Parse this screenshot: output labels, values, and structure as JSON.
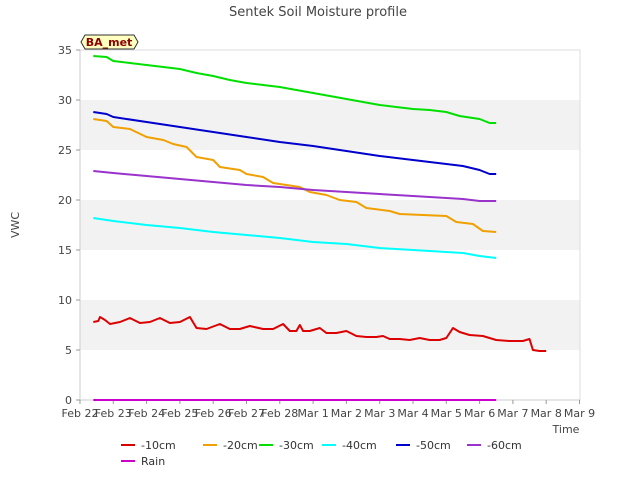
{
  "chart_data": {
    "type": "line",
    "title": "Sentek Soil Moisture profile",
    "xlabel": "Time",
    "ylabel": "VWC",
    "badge": "BA_met",
    "ylim": [
      0,
      35
    ],
    "yticks": [
      0,
      5,
      10,
      15,
      20,
      25,
      30,
      35
    ],
    "xlim": [
      0,
      16
    ],
    "xtick_labels": [
      "Feb 22",
      "Feb 23",
      "Feb 24",
      "Feb 25",
      "Feb 26",
      "Feb 27",
      "Feb 28",
      "Mar 1",
      "Mar 2",
      "Mar 3",
      "Mar 4",
      "Mar 5",
      "Mar 6",
      "Mar 7",
      "Mar 8",
      "Mar 9"
    ],
    "grid": "horizontal bands",
    "legend_position": "bottom",
    "series": [
      {
        "name": "-10cm",
        "color": "#dd0000",
        "points": [
          [
            0.4,
            7.8
          ],
          [
            0.55,
            7.9
          ],
          [
            0.6,
            8.3
          ],
          [
            0.75,
            8.0
          ],
          [
            0.9,
            7.6
          ],
          [
            1.2,
            7.8
          ],
          [
            1.5,
            8.2
          ],
          [
            1.8,
            7.7
          ],
          [
            2.1,
            7.8
          ],
          [
            2.4,
            8.2
          ],
          [
            2.7,
            7.7
          ],
          [
            3.0,
            7.8
          ],
          [
            3.3,
            8.3
          ],
          [
            3.5,
            7.2
          ],
          [
            3.8,
            7.1
          ],
          [
            4.2,
            7.6
          ],
          [
            4.5,
            7.1
          ],
          [
            4.8,
            7.1
          ],
          [
            5.1,
            7.4
          ],
          [
            5.5,
            7.1
          ],
          [
            5.8,
            7.1
          ],
          [
            6.1,
            7.6
          ],
          [
            6.3,
            6.9
          ],
          [
            6.5,
            6.9
          ],
          [
            6.6,
            7.5
          ],
          [
            6.7,
            6.9
          ],
          [
            6.9,
            6.9
          ],
          [
            7.2,
            7.2
          ],
          [
            7.4,
            6.7
          ],
          [
            7.7,
            6.7
          ],
          [
            8.0,
            6.9
          ],
          [
            8.3,
            6.4
          ],
          [
            8.6,
            6.3
          ],
          [
            8.9,
            6.3
          ],
          [
            9.1,
            6.4
          ],
          [
            9.3,
            6.1
          ],
          [
            9.6,
            6.1
          ],
          [
            9.9,
            6.0
          ],
          [
            10.2,
            6.2
          ],
          [
            10.5,
            6.0
          ],
          [
            10.8,
            6.0
          ],
          [
            11.0,
            6.2
          ],
          [
            11.2,
            7.2
          ],
          [
            11.4,
            6.8
          ],
          [
            11.7,
            6.5
          ],
          [
            12.1,
            6.4
          ],
          [
            12.5,
            6.0
          ],
          [
            12.9,
            5.9
          ],
          [
            13.3,
            5.9
          ],
          [
            13.5,
            6.1
          ],
          [
            13.6,
            5.0
          ],
          [
            13.8,
            4.9
          ],
          [
            14.0,
            4.9
          ]
        ]
      },
      {
        "name": "-20cm",
        "color": "#f0a000",
        "points": [
          [
            0.4,
            28.1
          ],
          [
            0.8,
            27.9
          ],
          [
            1.0,
            27.3
          ],
          [
            1.5,
            27.1
          ],
          [
            2.0,
            26.3
          ],
          [
            2.5,
            26.0
          ],
          [
            2.8,
            25.6
          ],
          [
            3.2,
            25.3
          ],
          [
            3.5,
            24.3
          ],
          [
            4.0,
            24.0
          ],
          [
            4.2,
            23.3
          ],
          [
            4.8,
            23.0
          ],
          [
            5.0,
            22.6
          ],
          [
            5.5,
            22.3
          ],
          [
            5.8,
            21.7
          ],
          [
            6.2,
            21.5
          ],
          [
            6.6,
            21.3
          ],
          [
            6.9,
            20.8
          ],
          [
            7.4,
            20.5
          ],
          [
            7.8,
            20.0
          ],
          [
            8.3,
            19.8
          ],
          [
            8.6,
            19.2
          ],
          [
            9.3,
            18.9
          ],
          [
            9.6,
            18.6
          ],
          [
            10.3,
            18.5
          ],
          [
            11.0,
            18.4
          ],
          [
            11.3,
            17.8
          ],
          [
            11.8,
            17.6
          ],
          [
            12.1,
            16.9
          ],
          [
            12.5,
            16.8
          ]
        ]
      },
      {
        "name": "-30cm",
        "color": "#00e000",
        "points": [
          [
            0.4,
            34.4
          ],
          [
            0.8,
            34.3
          ],
          [
            1.0,
            33.9
          ],
          [
            1.5,
            33.7
          ],
          [
            2.0,
            33.5
          ],
          [
            2.5,
            33.3
          ],
          [
            3.0,
            33.1
          ],
          [
            3.5,
            32.7
          ],
          [
            4.0,
            32.4
          ],
          [
            4.5,
            32.0
          ],
          [
            5.0,
            31.7
          ],
          [
            5.5,
            31.5
          ],
          [
            6.0,
            31.3
          ],
          [
            6.5,
            31.0
          ],
          [
            7.0,
            30.7
          ],
          [
            7.5,
            30.4
          ],
          [
            8.0,
            30.1
          ],
          [
            8.5,
            29.8
          ],
          [
            9.0,
            29.5
          ],
          [
            9.5,
            29.3
          ],
          [
            10.0,
            29.1
          ],
          [
            10.5,
            29.0
          ],
          [
            11.0,
            28.8
          ],
          [
            11.4,
            28.4
          ],
          [
            12.0,
            28.1
          ],
          [
            12.3,
            27.7
          ],
          [
            12.5,
            27.7
          ]
        ]
      },
      {
        "name": "-40cm",
        "color": "#00ffff",
        "points": [
          [
            0.4,
            18.2
          ],
          [
            1.0,
            17.9
          ],
          [
            2.0,
            17.5
          ],
          [
            3.0,
            17.2
          ],
          [
            4.0,
            16.8
          ],
          [
            5.0,
            16.5
          ],
          [
            6.0,
            16.2
          ],
          [
            7.0,
            15.8
          ],
          [
            8.0,
            15.6
          ],
          [
            9.0,
            15.2
          ],
          [
            10.0,
            15.0
          ],
          [
            11.0,
            14.8
          ],
          [
            11.5,
            14.7
          ],
          [
            12.0,
            14.4
          ],
          [
            12.5,
            14.2
          ]
        ]
      },
      {
        "name": "-50cm",
        "color": "#0000cc",
        "points": [
          [
            0.4,
            28.8
          ],
          [
            0.8,
            28.6
          ],
          [
            1.0,
            28.3
          ],
          [
            2.0,
            27.8
          ],
          [
            3.0,
            27.3
          ],
          [
            4.0,
            26.8
          ],
          [
            5.0,
            26.3
          ],
          [
            6.0,
            25.8
          ],
          [
            7.0,
            25.4
          ],
          [
            8.0,
            24.9
          ],
          [
            9.0,
            24.4
          ],
          [
            10.0,
            24.0
          ],
          [
            11.0,
            23.6
          ],
          [
            11.5,
            23.4
          ],
          [
            12.0,
            23.0
          ],
          [
            12.3,
            22.6
          ],
          [
            12.5,
            22.6
          ]
        ]
      },
      {
        "name": "-60cm",
        "color": "#9933cc",
        "points": [
          [
            0.4,
            22.9
          ],
          [
            1.0,
            22.7
          ],
          [
            2.0,
            22.4
          ],
          [
            3.0,
            22.1
          ],
          [
            4.0,
            21.8
          ],
          [
            5.0,
            21.5
          ],
          [
            6.0,
            21.3
          ],
          [
            7.0,
            21.0
          ],
          [
            8.0,
            20.8
          ],
          [
            9.0,
            20.6
          ],
          [
            10.0,
            20.4
          ],
          [
            11.0,
            20.2
          ],
          [
            11.5,
            20.1
          ],
          [
            12.0,
            19.9
          ],
          [
            12.5,
            19.9
          ]
        ]
      },
      {
        "name": "Rain",
        "color": "#cc00cc",
        "points": [
          [
            0.4,
            0.0
          ],
          [
            12.5,
            0.0
          ]
        ]
      }
    ]
  }
}
